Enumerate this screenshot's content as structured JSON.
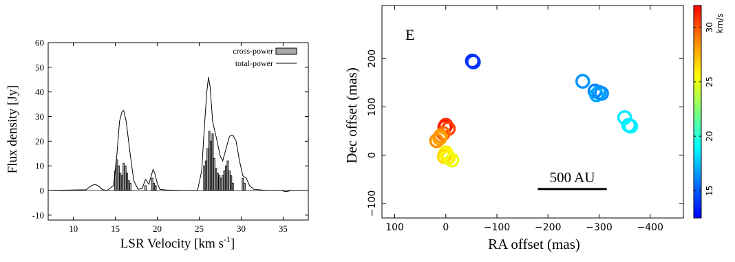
{
  "chart_data": [
    {
      "type": "bar",
      "title": "",
      "xlabel": "LSR Velocity [km s",
      "xlabel_sup": "-1",
      "xlabel_end": "]",
      "ylabel": "Flux density [Jy]",
      "xlim": [
        7,
        38
      ],
      "ylim": [
        -12,
        60
      ],
      "xticks": [
        10,
        15,
        20,
        25,
        30,
        35
      ],
      "yticks": [
        -10,
        0,
        10,
        20,
        30,
        40,
        50,
        60
      ],
      "grid": false,
      "legend_position": "top-right",
      "legend": {
        "cross": "cross-power",
        "total": "total-power"
      },
      "series": [
        {
          "name": "cross-power",
          "style": "bars",
          "x": [
            15.0,
            15.2,
            15.4,
            15.6,
            15.8,
            16.0,
            16.2,
            16.4,
            16.6,
            16.8,
            18.6,
            19.4,
            19.6,
            19.8,
            25.6,
            25.8,
            26.0,
            26.2,
            26.4,
            26.6,
            26.8,
            27.0,
            27.2,
            27.4,
            27.6,
            27.8,
            28.0,
            28.2,
            28.4,
            28.6,
            28.8,
            29.0,
            30.2,
            30.4
          ],
          "y": [
            8,
            12.5,
            10,
            7,
            6,
            11,
            10,
            7,
            4,
            3,
            2,
            5,
            3,
            2,
            10,
            12,
            17,
            24,
            20,
            23,
            13,
            9,
            7,
            6,
            5,
            6,
            8,
            10,
            12,
            8,
            6,
            3,
            5,
            3
          ]
        },
        {
          "name": "total-power",
          "style": "line",
          "x": [
            7.0,
            11.5,
            12.2,
            12.6,
            13.0,
            13.5,
            14.0,
            14.8,
            15.2,
            15.5,
            15.8,
            16.0,
            16.3,
            16.8,
            17.2,
            17.7,
            18.2,
            18.6,
            19.0,
            19.2,
            19.5,
            19.7,
            20.0,
            20.3,
            21.0,
            23.0,
            24.8,
            25.3,
            25.6,
            25.9,
            26.1,
            26.3,
            26.6,
            27.0,
            27.5,
            27.8,
            28.2,
            28.6,
            29.0,
            29.4,
            29.8,
            30.2,
            30.6,
            31.0,
            31.5,
            33.0,
            34.8,
            35.3,
            36.0,
            38.0
          ],
          "y": [
            0,
            0.3,
            2.0,
            2.5,
            1.8,
            0.3,
            0,
            2,
            15,
            28,
            32,
            32.5,
            28,
            14,
            4,
            0.5,
            0.8,
            4.5,
            2.5,
            5,
            8.5,
            7,
            3,
            0.5,
            0.2,
            0,
            0,
            8,
            25,
            40,
            46,
            42,
            28,
            22,
            14,
            12,
            17,
            22,
            22.5,
            20,
            12,
            6,
            5,
            2,
            0.5,
            0,
            0,
            -0.5,
            0,
            0
          ]
        }
      ]
    },
    {
      "type": "scatter",
      "title": "",
      "panel_label": "E",
      "xlabel": "RA offset (mas)",
      "ylabel": "Dec offset (mas)",
      "xlim": [
        125,
        -465
      ],
      "ylim": [
        -130,
        310
      ],
      "xticks": [
        100,
        0,
        -100,
        -200,
        -300,
        -400
      ],
      "yticks": [
        -100,
        0,
        100,
        200
      ],
      "grid": false,
      "scale_bar": {
        "label": "500 AU",
        "from_ra": -180,
        "to_ra": -315,
        "dec": -70
      },
      "colorbar": {
        "label": "km/s",
        "vmin": 12.5,
        "vmax": 32,
        "ticks": [
          15,
          20,
          25,
          30
        ],
        "gradient": [
          "#0000ff",
          "#0077ff",
          "#00ffff",
          "#7dff7d",
          "#ffff00",
          "#ff8800",
          "#ff0000"
        ]
      },
      "points": [
        {
          "ra": -52,
          "dec": 195,
          "v": 13.5
        },
        {
          "ra": -54,
          "dec": 193,
          "v": 14.0
        },
        {
          "ra": -268,
          "dec": 153,
          "v": 16.5
        },
        {
          "ra": -292,
          "dec": 133,
          "v": 16.0
        },
        {
          "ra": -300,
          "dec": 130,
          "v": 16.5
        },
        {
          "ra": -295,
          "dec": 125,
          "v": 17.0
        },
        {
          "ra": -305,
          "dec": 128,
          "v": 16.3
        },
        {
          "ra": -350,
          "dec": 78,
          "v": 18.5
        },
        {
          "ra": -362,
          "dec": 60,
          "v": 18.8
        },
        {
          "ra": -358,
          "dec": 62,
          "v": 18.5
        },
        {
          "ra": 0,
          "dec": 62,
          "v": 31.0
        },
        {
          "ra": 2,
          "dec": 58,
          "v": 31.5
        },
        {
          "ra": -5,
          "dec": 55,
          "v": 30.5
        },
        {
          "ra": 5,
          "dec": 45,
          "v": 29.5
        },
        {
          "ra": 10,
          "dec": 40,
          "v": 28.5
        },
        {
          "ra": 12,
          "dec": 35,
          "v": 28.0
        },
        {
          "ra": 18,
          "dec": 30,
          "v": 28.5
        },
        {
          "ra": 0,
          "dec": 5,
          "v": 26.0
        },
        {
          "ra": -2,
          "dec": 0,
          "v": 25.5
        },
        {
          "ra": 3,
          "dec": -3,
          "v": 26.5
        },
        {
          "ra": -5,
          "dec": -5,
          "v": 26.0
        },
        {
          "ra": -12,
          "dec": -10,
          "v": 25.0
        }
      ]
    }
  ]
}
